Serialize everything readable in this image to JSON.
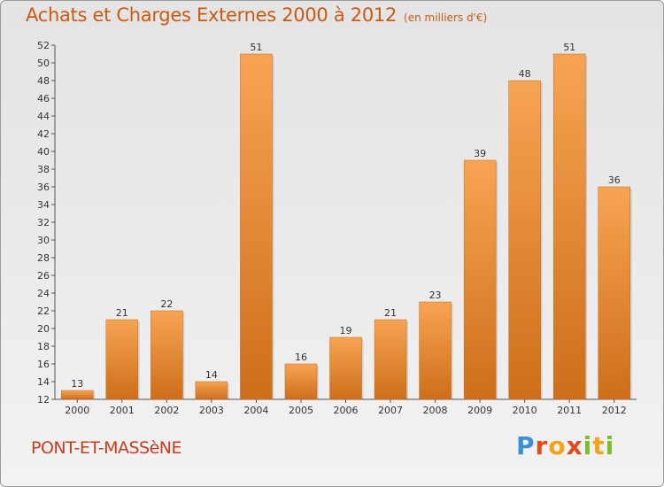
{
  "header": {
    "title": "Achats et Charges Externes 2000 à 2012",
    "unit": "(en milliers d'€)"
  },
  "footer": {
    "town": "PONT-ET-MASSèNE",
    "brand": "Proxiti"
  },
  "colors": {
    "title": "#cc5a12",
    "town": "#cc3b1a",
    "bar_light": "#f7a452",
    "bar_dark": "#cd6e1a",
    "brand": [
      "#3a8fd8",
      "#e5491e",
      "#f3a21b",
      "#7cbf2a"
    ]
  },
  "chart_data": {
    "type": "bar",
    "title": "Achats et Charges Externes 2000 à 2012",
    "subtitle": "(en milliers d'€)",
    "xlabel": "",
    "ylabel": "",
    "categories": [
      "2000",
      "2001",
      "2002",
      "2003",
      "2004",
      "2005",
      "2006",
      "2007",
      "2008",
      "2009",
      "2010",
      "2011",
      "2012"
    ],
    "values": [
      13,
      21,
      22,
      14,
      51,
      16,
      19,
      21,
      23,
      39,
      48,
      51,
      36
    ],
    "ylim": [
      12,
      52
    ],
    "yticks": [
      12,
      14,
      16,
      18,
      20,
      22,
      24,
      26,
      28,
      30,
      32,
      34,
      36,
      38,
      40,
      42,
      44,
      46,
      48,
      50,
      52
    ],
    "grid": false,
    "legend": "none"
  }
}
